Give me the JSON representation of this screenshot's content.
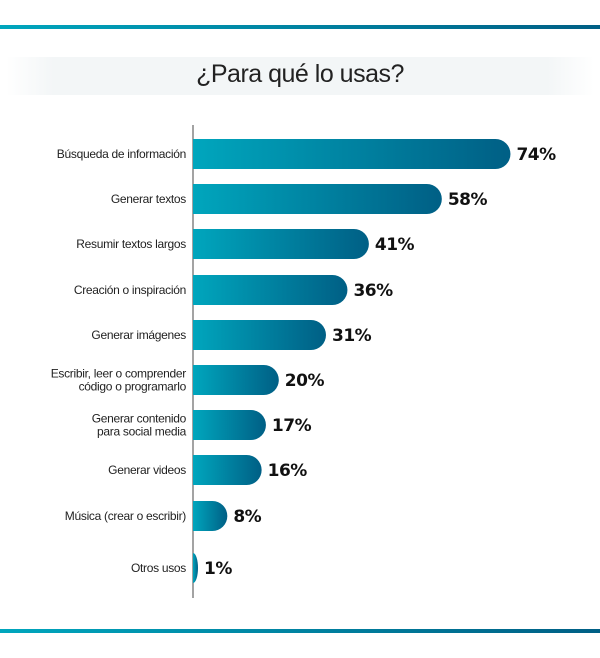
{
  "chart_data": {
    "type": "bar",
    "orientation": "horizontal",
    "title": "¿Para qué lo usas?",
    "categories": [
      [
        "Búsqueda de información"
      ],
      [
        "Generar textos"
      ],
      [
        "Resumir textos largos"
      ],
      [
        "Creación o inspiración"
      ],
      [
        "Generar imágenes"
      ],
      [
        "Escribir, leer o comprender",
        "código o programarlo"
      ],
      [
        "Generar contenido",
        "para social media"
      ],
      [
        "Generar videos"
      ],
      [
        "Música (crear o escribir)"
      ],
      [
        "Otros usos"
      ]
    ],
    "values": [
      74,
      58,
      41,
      36,
      31,
      20,
      17,
      16,
      8,
      1
    ],
    "value_labels": [
      "74%",
      "58%",
      "41%",
      "36%",
      "31%",
      "20%",
      "17%",
      "16%",
      "8%",
      "1%"
    ],
    "unit": "%",
    "xlim": [
      0,
      100
    ],
    "grid": false,
    "legend": "none",
    "colors": {
      "bar_start": "#00a6bd",
      "bar_end": "#005f85",
      "rule": "#0088a8"
    }
  }
}
